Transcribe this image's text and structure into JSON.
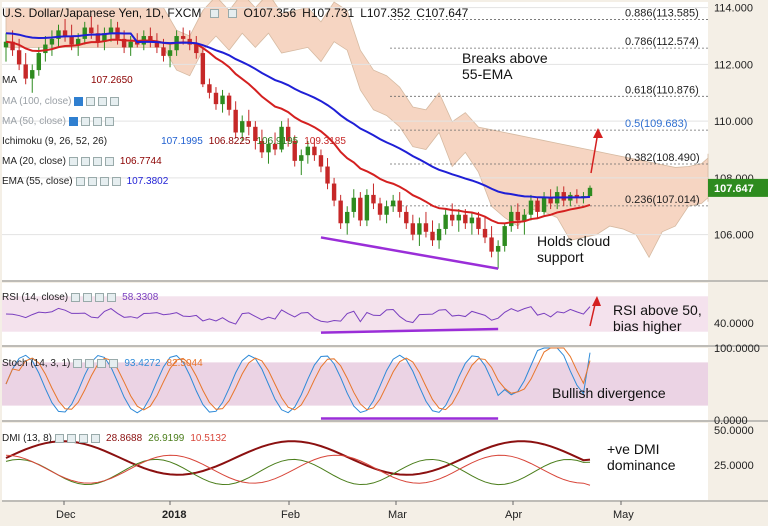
{
  "header": {
    "symbol": "U.S. Dollar/Japanese Yen, 1D, FXCM",
    "open": "O107.356",
    "high": "H107.731",
    "low": "L107.352",
    "close": "C107.647"
  },
  "indicators": {
    "ma200": {
      "label": "MA",
      "value": "107.2650"
    },
    "ma100": {
      "label": "MA (100, close)"
    },
    "ma50": {
      "label": "MA (50, close)"
    },
    "ichimoku": {
      "label": "Ichimoku (9, 26, 52, 26)",
      "v1": "107.1995",
      "v2": "106.8225",
      "v3": "106.9195",
      "v4": "109.3185"
    },
    "ma20": {
      "label": "MA (20, close)",
      "value": "106.7744"
    },
    "ema55": {
      "label": "EMA (55, close)",
      "value": "107.3802"
    }
  },
  "annotations": {
    "breaks": "Breaks above\n55-EMA",
    "holds": "Holds cloud\nsupport",
    "rsi_note": "RSI above 50,\nbias higher",
    "divergence": "Bullish divergence",
    "dmi_note": "+ve DMI\ndominance"
  },
  "colors": {
    "background": "#f4efe6",
    "price_bg": "#ffffff",
    "cloud_top": "#f3c7ae",
    "cloud_bottom": "#d9e7c6",
    "candle_up": "#2e8b1f",
    "candle_down": "#c62828",
    "ema55": "#1f1fd6",
    "ma20": "#d42020",
    "rsi_line": "#7a3fbf",
    "rsi_band": "#f0d6e6",
    "stoch_k": "#2e8ad8",
    "stoch_d": "#e8762b",
    "stoch_band": "#e2c0d8",
    "dmi_adx": "#8b1010",
    "dmi_plus": "#4a7d1a",
    "dmi_minus": "#d8463a",
    "divergence_line": "#9a2ed8",
    "arrow": "#d42020",
    "fib_line": "#6b6b6b"
  },
  "chart_data": {
    "type": "candlestick",
    "title": "U.S. Dollar/Japanese Yen, 1D, FXCM",
    "x_labels": [
      "Dec",
      "2018",
      "Feb",
      "Mar",
      "Apr",
      "May"
    ],
    "price_axis": {
      "ticks": [
        114.0,
        112.0,
        110.0,
        108.0,
        106.0
      ],
      "tick_labels": [
        "114.000",
        "112.000",
        "110.000",
        "108.000",
        "106.000"
      ],
      "ylim": [
        104.4,
        114.2
      ],
      "last_price": "107.647",
      "last_price_value": 107.647
    },
    "fibonacci": [
      {
        "label": "0.886(113.585)",
        "value": 113.585
      },
      {
        "label": "0.786(112.574)",
        "value": 112.574
      },
      {
        "label": "0.618(110.876)",
        "value": 110.876
      },
      {
        "label": "0.5(109.683)",
        "value": 109.683
      },
      {
        "label": "0.382(108.490)",
        "value": 108.49
      },
      {
        "label": "0.236(107.014)",
        "value": 107.014
      }
    ],
    "rsi": {
      "label": "RSI (14, close)",
      "value": "58.3308",
      "ticks": [
        "40.0000"
      ],
      "ylim": [
        15,
        85
      ]
    },
    "stoch": {
      "label": "Stoch (14, 3, 1)",
      "k": "93.4272",
      "d": "82.5044",
      "ticks": [
        "100.0000",
        "0.0000"
      ],
      "ylim": [
        0,
        100
      ]
    },
    "dmi": {
      "label": "DMI (13, 8)",
      "adx": "28.8688",
      "plus_di": "26.9199",
      "minus_di": "10.5132",
      "ticks": [
        "50.0000",
        "25.0000"
      ],
      "ylim": [
        0,
        55
      ]
    },
    "candles": [
      [
        112.6,
        113.1,
        112.1,
        112.8
      ],
      [
        112.8,
        113.2,
        112.3,
        112.5
      ],
      [
        112.5,
        112.9,
        111.8,
        112.0
      ],
      [
        112.0,
        112.4,
        111.3,
        111.5
      ],
      [
        111.5,
        112.0,
        111.0,
        111.8
      ],
      [
        111.8,
        112.6,
        111.6,
        112.4
      ],
      [
        112.4,
        113.0,
        112.1,
        112.7
      ],
      [
        112.7,
        113.2,
        112.3,
        112.9
      ],
      [
        112.9,
        113.4,
        112.6,
        113.2
      ],
      [
        113.2,
        113.6,
        112.8,
        113.0
      ],
      [
        113.0,
        113.4,
        112.5,
        112.7
      ],
      [
        112.7,
        113.1,
        112.3,
        112.9
      ],
      [
        112.9,
        113.5,
        112.7,
        113.3
      ],
      [
        113.3,
        113.7,
        112.9,
        113.1
      ],
      [
        113.1,
        113.4,
        112.6,
        112.8
      ],
      [
        112.8,
        113.3,
        112.5,
        113.1
      ],
      [
        113.1,
        113.6,
        112.8,
        113.3
      ],
      [
        113.3,
        113.5,
        112.7,
        112.9
      ],
      [
        112.9,
        113.2,
        112.4,
        112.6
      ],
      [
        112.6,
        113.0,
        112.3,
        112.8
      ],
      [
        112.8,
        113.1,
        112.6,
        112.7
      ],
      [
        112.7,
        113.2,
        112.5,
        113.0
      ],
      [
        113.0,
        113.3,
        112.6,
        112.8
      ],
      [
        112.8,
        113.1,
        112.4,
        112.6
      ],
      [
        112.6,
        112.9,
        112.1,
        112.3
      ],
      [
        112.3,
        112.7,
        111.9,
        112.5
      ],
      [
        112.5,
        113.2,
        112.3,
        113.0
      ],
      [
        113.0,
        113.3,
        112.7,
        112.9
      ],
      [
        112.9,
        113.2,
        112.5,
        112.7
      ],
      [
        112.7,
        113.0,
        112.2,
        112.4
      ],
      [
        112.4,
        112.6,
        111.2,
        111.3
      ],
      [
        111.3,
        111.5,
        110.8,
        111.0
      ],
      [
        111.0,
        111.2,
        110.4,
        110.6
      ],
      [
        110.6,
        111.1,
        110.3,
        110.9
      ],
      [
        110.9,
        111.0,
        110.2,
        110.4
      ],
      [
        110.4,
        110.7,
        109.4,
        109.6
      ],
      [
        109.6,
        110.2,
        109.3,
        110.0
      ],
      [
        110.0,
        110.4,
        109.5,
        109.8
      ],
      [
        109.8,
        110.0,
        109.0,
        109.3
      ],
      [
        109.3,
        109.7,
        108.7,
        108.9
      ],
      [
        108.9,
        109.4,
        108.5,
        109.2
      ],
      [
        109.2,
        109.6,
        108.8,
        109.0
      ],
      [
        109.0,
        110.0,
        108.9,
        109.8
      ],
      [
        109.8,
        110.1,
        109.1,
        109.3
      ],
      [
        109.3,
        109.5,
        108.4,
        108.6
      ],
      [
        108.6,
        109.0,
        108.1,
        108.8
      ],
      [
        108.8,
        109.3,
        108.5,
        109.1
      ],
      [
        109.1,
        109.4,
        108.6,
        108.8
      ],
      [
        108.8,
        109.0,
        108.2,
        108.4
      ],
      [
        108.4,
        108.7,
        107.6,
        107.8
      ],
      [
        107.8,
        108.0,
        107.0,
        107.2
      ],
      [
        107.2,
        107.4,
        106.2,
        106.4
      ],
      [
        106.4,
        107.0,
        106.0,
        106.8
      ],
      [
        106.8,
        107.6,
        106.6,
        107.3
      ],
      [
        107.3,
        107.5,
        106.3,
        106.5
      ],
      [
        106.5,
        107.6,
        106.3,
        107.4
      ],
      [
        107.4,
        107.8,
        106.9,
        107.1
      ],
      [
        107.1,
        107.3,
        106.5,
        106.7
      ],
      [
        106.7,
        107.2,
        106.4,
        107.0
      ],
      [
        107.0,
        107.4,
        106.8,
        107.2
      ],
      [
        107.2,
        107.5,
        106.6,
        106.8
      ],
      [
        106.8,
        107.0,
        106.2,
        106.4
      ],
      [
        106.4,
        106.7,
        105.8,
        106.0
      ],
      [
        106.0,
        106.6,
        105.6,
        106.4
      ],
      [
        106.4,
        106.8,
        105.9,
        106.1
      ],
      [
        106.1,
        106.5,
        105.6,
        105.8
      ],
      [
        105.8,
        106.4,
        105.5,
        106.2
      ],
      [
        106.2,
        106.9,
        106.0,
        106.7
      ],
      [
        106.7,
        107.1,
        106.3,
        106.5
      ],
      [
        106.5,
        106.9,
        106.1,
        106.7
      ],
      [
        106.7,
        106.9,
        106.2,
        106.4
      ],
      [
        106.4,
        106.8,
        106.0,
        106.6
      ],
      [
        106.6,
        106.8,
        106.0,
        106.2
      ],
      [
        106.2,
        106.6,
        105.7,
        105.9
      ],
      [
        105.9,
        106.3,
        105.2,
        105.4
      ],
      [
        105.4,
        105.8,
        104.8,
        105.6
      ],
      [
        105.6,
        106.4,
        105.4,
        106.3
      ],
      [
        106.3,
        107.0,
        106.1,
        106.8
      ],
      [
        106.8,
        107.1,
        106.2,
        106.5
      ],
      [
        106.5,
        106.9,
        106.0,
        106.7
      ],
      [
        106.7,
        107.4,
        106.5,
        107.2
      ],
      [
        107.2,
        107.3,
        106.6,
        106.8
      ],
      [
        106.8,
        107.5,
        106.7,
        107.3
      ],
      [
        107.3,
        107.6,
        106.9,
        107.1
      ],
      [
        107.1,
        107.7,
        106.9,
        107.5
      ],
      [
        107.5,
        107.7,
        107.0,
        107.2
      ],
      [
        107.2,
        107.5,
        107.0,
        107.4
      ],
      [
        107.4,
        107.6,
        107.1,
        107.3
      ],
      [
        107.3,
        107.5,
        107.1,
        107.36
      ],
      [
        107.36,
        107.73,
        107.35,
        107.65
      ]
    ]
  }
}
